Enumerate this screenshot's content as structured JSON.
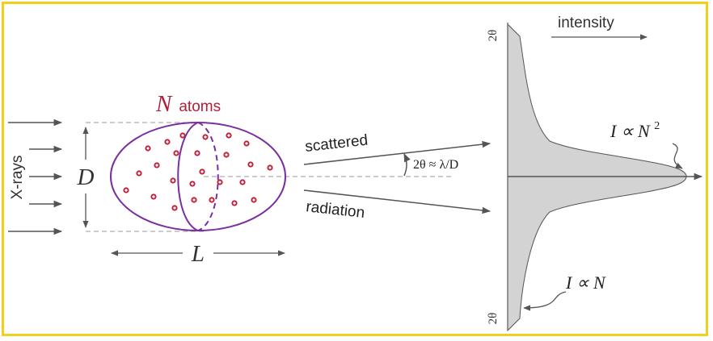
{
  "labels": {
    "xrays": "X-rays",
    "d_symbol": "D",
    "l_symbol": "L",
    "n_symbol": "N",
    "atoms": "atoms",
    "scattered": "scattered",
    "radiation": "radiation",
    "angle_formula": "2θ ≈ λ/D",
    "intensity": "intensity",
    "two_theta_top": "2θ",
    "two_theta_bottom": "2θ",
    "i_prop": "I ∝ ",
    "n2_base": "N",
    "n2_exp": "2",
    "n_base": "N"
  },
  "colors": {
    "frame": "#f2cf1d",
    "ellipse": "#7a2fa0",
    "atoms": "#c0203a",
    "atoms_label": "#b0203a",
    "profile_fill": "#d3d3d3",
    "arrows": "#555555"
  }
}
